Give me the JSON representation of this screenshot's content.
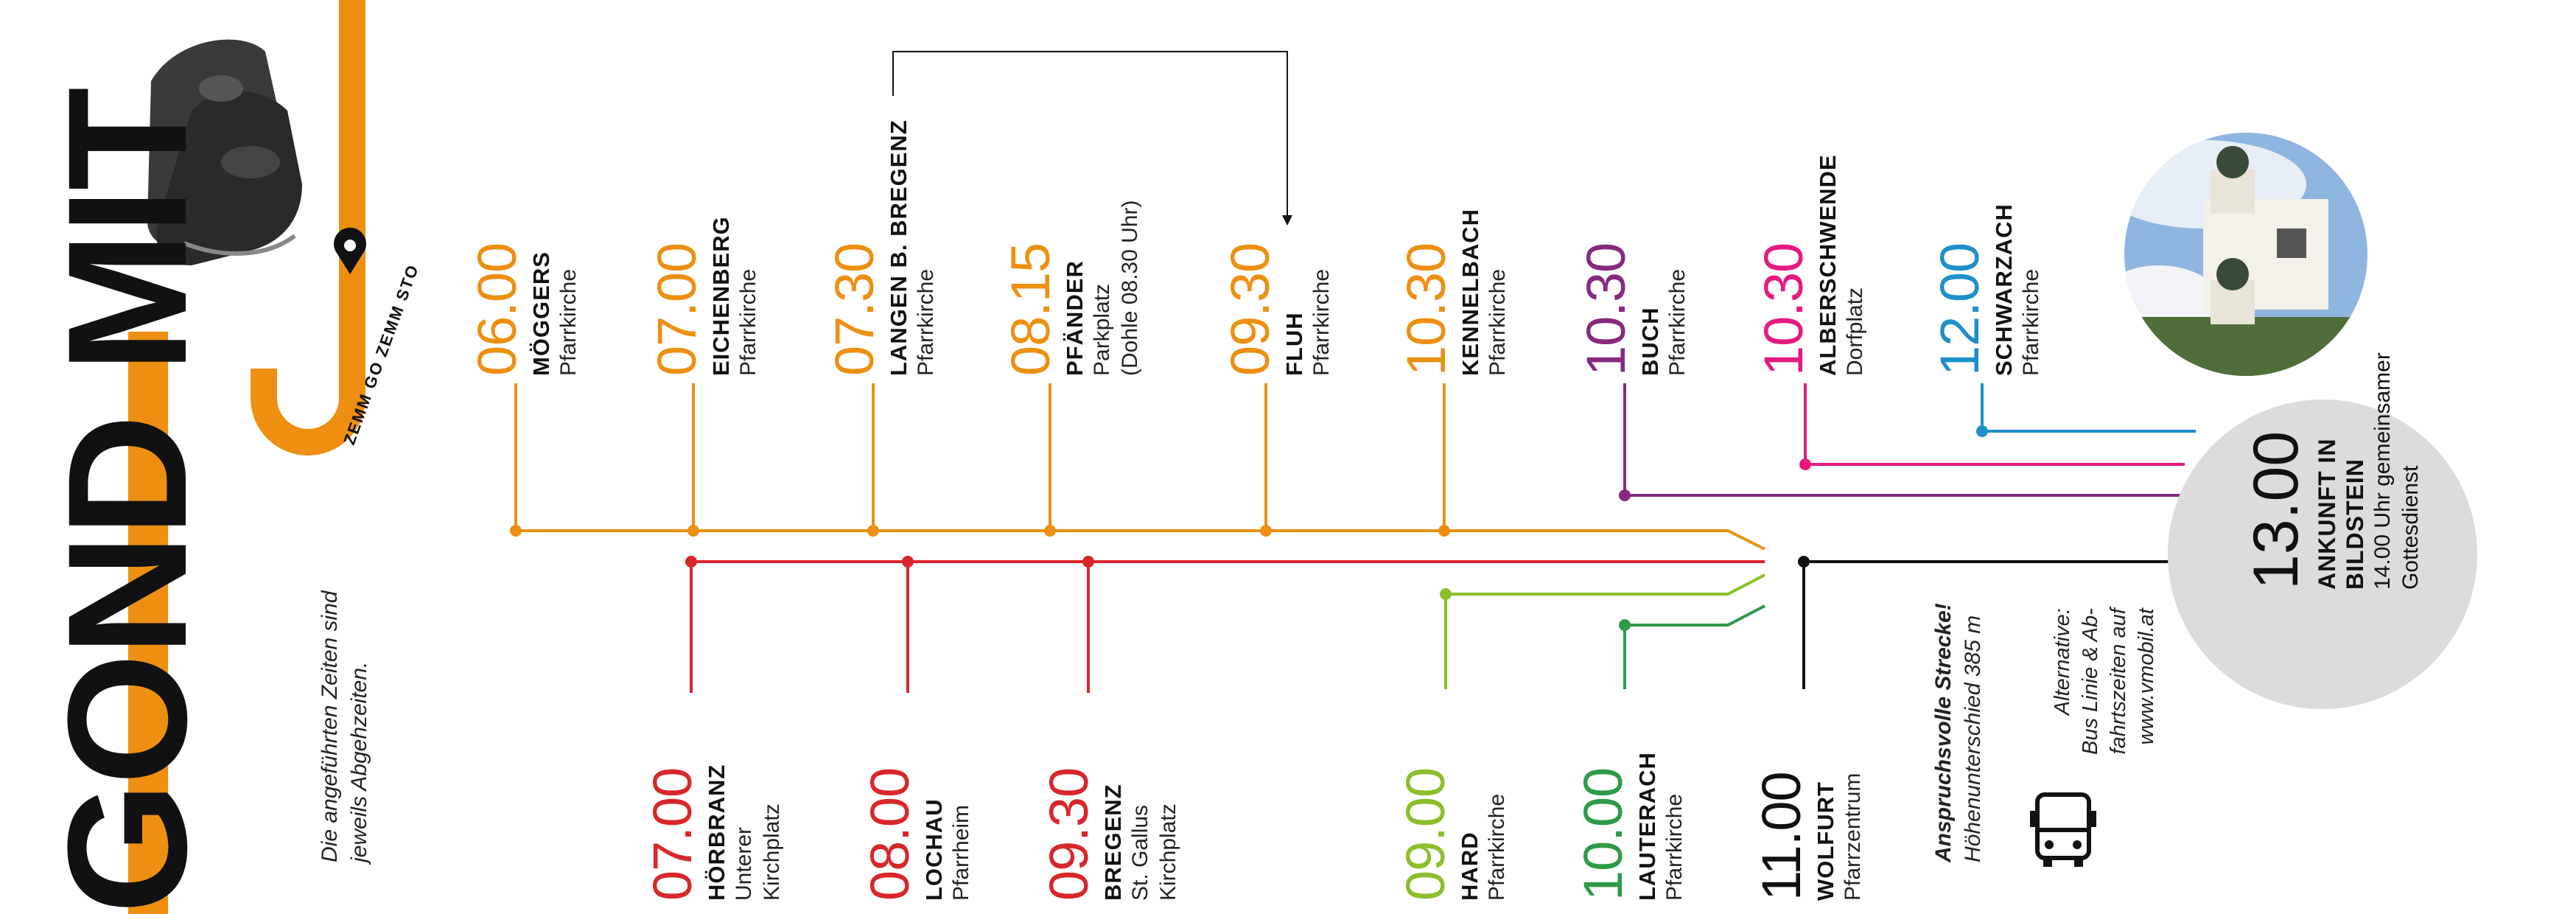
{
  "title": "GOND MIT",
  "slogan": "ZEMM GO ZEMM STO",
  "note": [
    "Die angeführten Zeiten sind",
    "jeweils Abgehzeiten."
  ],
  "colors": {
    "orange": "#EE8F12",
    "red": "#D9262A",
    "lightgreen": "#8DBE2B",
    "green": "#2E9B48",
    "purple": "#87297F",
    "magenta": "#E6197F",
    "blue": "#1E90C9",
    "black": "#111111",
    "grey": "#DCDCDC"
  },
  "stops_top": [
    {
      "time": "06.00",
      "name": "MÖGGERS",
      "sub": [
        "Pfarrkirche"
      ],
      "color": "orange"
    },
    {
      "time": "07.00",
      "name": "EICHENBERG",
      "sub": [
        "Pfarrkirche"
      ],
      "color": "orange"
    },
    {
      "time": "07.30",
      "name": "LANGEN B. BREGENZ",
      "sub": [
        "Pfarrkirche"
      ],
      "color": "orange"
    },
    {
      "time": "08.15",
      "name": "PFÄNDER",
      "sub": [
        "Parkplatz",
        "(Dohle 08.30 Uhr)"
      ],
      "color": "orange"
    },
    {
      "time": "09.30",
      "name": "FLUH",
      "sub": [
        "Pfarrkirche"
      ],
      "color": "orange"
    },
    {
      "time": "10.30",
      "name": "KENNELBACH",
      "sub": [
        "Pfarrkirche"
      ],
      "color": "orange"
    },
    {
      "time": "10.30",
      "name": "BUCH",
      "sub": [
        "Pfarrkirche"
      ],
      "color": "purple"
    },
    {
      "time": "10.30",
      "name": "ALBERSCHWENDE",
      "sub": [
        "Dorfplatz"
      ],
      "color": "magenta"
    },
    {
      "time": "12.00",
      "name": "SCHWARZACH",
      "sub": [
        "Pfarrkirche"
      ],
      "color": "blue"
    }
  ],
  "stops_bottom": [
    {
      "time": "07.00",
      "name": "HÖRBRANZ",
      "sub": [
        "Unterer",
        "Kirchplatz"
      ],
      "color": "red"
    },
    {
      "time": "08.00",
      "name": "LOCHAU",
      "sub": [
        "Pfarrheim"
      ],
      "color": "red"
    },
    {
      "time": "09.30",
      "name": "BREGENZ",
      "sub": [
        "St. Gallus",
        "Kirchplatz"
      ],
      "color": "red"
    },
    {
      "time": "09.00",
      "name": "HARD",
      "sub": [
        "Pfarrkirche"
      ],
      "color": "lightgreen"
    },
    {
      "time": "10.00",
      "name": "LAUTERACH",
      "sub": [
        "Pfarrkirche"
      ],
      "color": "green"
    },
    {
      "time": "11.00",
      "name": "WOLFURT",
      "sub": [
        "Pfarrzentrum"
      ],
      "color": "black"
    }
  ],
  "challenge": [
    "Anspruchsvolle Strecke!",
    "Höhenunterschied 385 m"
  ],
  "alternative": [
    "Alternative:",
    "Bus Linie & Ab-",
    "fahrtszeiten auf",
    "www.vmobil.at"
  ],
  "destination": {
    "time": "13.00",
    "name": [
      "ANKUNFT IN",
      "BILDSTEIN"
    ],
    "sub": [
      "14.00 Uhr gemeinsamer",
      "Gottesdienst"
    ]
  },
  "icons": [
    "boots-icon",
    "location-pin-icon",
    "bus-icon",
    "church-photo"
  ]
}
